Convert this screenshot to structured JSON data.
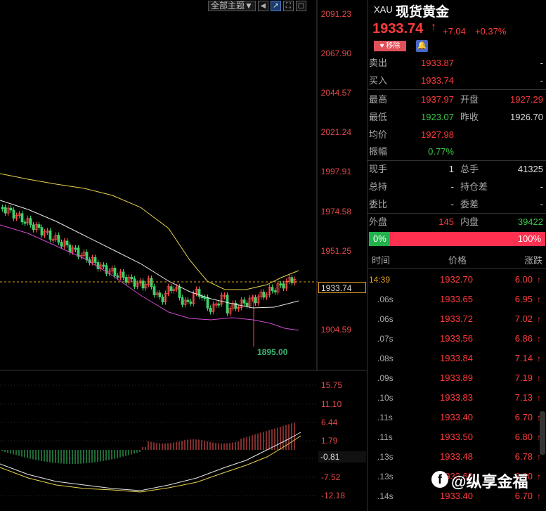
{
  "toolbar": {
    "theme_select": "全部主题▼"
  },
  "price_axis": [
    "2091.23",
    "2067.90",
    "2044.57",
    "2021.24",
    "1997.91",
    "1974.58",
    "1951.25",
    "1904.59"
  ],
  "current_price_tag": "1933.74",
  "low_marker": "1895.00",
  "lower_axis": [
    "15.75",
    "11.10",
    "6.44",
    "1.79",
    "-7.52",
    "-12.18"
  ],
  "lower_current": "-0.81",
  "header": {
    "symbol": "XAU",
    "name": "现货黄金",
    "price": "1933.74",
    "arrow": "↑",
    "change": "+7.04",
    "change_pct": "+0.37%",
    "remove_label": "移除"
  },
  "quote_rows": [
    {
      "l1": "卖出",
      "v1": "1933.87",
      "l2": "",
      "v2": "-"
    },
    {
      "l1": "买入",
      "v1": "1933.74",
      "l2": "",
      "v2": "-"
    },
    {
      "l1": "最高",
      "v1": "1937.97",
      "l2": "开盘",
      "v2": "1927.29"
    },
    {
      "l1": "最低",
      "v1": "1923.07",
      "l2": "昨收",
      "v2": "1926.70"
    },
    {
      "l1": "均价",
      "v1": "1927.98",
      "l2": "",
      "v2": ""
    },
    {
      "l1": "振幅",
      "v1": "0.77%",
      "l2": "",
      "v2": ""
    },
    {
      "l1": "现手",
      "v1": "1",
      "l2": "总手",
      "v2": "41325"
    },
    {
      "l1": "总持",
      "v1": "-",
      "l2": "持仓差",
      "v2": "-"
    },
    {
      "l1": "委比",
      "v1": "-",
      "l2": "委差",
      "v2": "-"
    },
    {
      "l1": "外盘",
      "v1": "145",
      "l2": "内盘",
      "v2": "39422"
    }
  ],
  "ratio": {
    "left": "0%",
    "right": "100%",
    "buy_fraction": 0.12
  },
  "ticks_header": {
    "time": "时间",
    "price": "价格",
    "change": "涨跌"
  },
  "ticks": [
    {
      "time": "14:39",
      "price": "1932.70",
      "change": "6.00"
    },
    {
      "time": ".06s",
      "price": "1933.65",
      "change": "6.95"
    },
    {
      "time": ".06s",
      "price": "1933.72",
      "change": "7.02"
    },
    {
      "time": ".07s",
      "price": "1933.56",
      "change": "6.86"
    },
    {
      "time": ".08s",
      "price": "1933.84",
      "change": "7.14"
    },
    {
      "time": ".09s",
      "price": "1933.89",
      "change": "7.19"
    },
    {
      "time": ".10s",
      "price": "1933.83",
      "change": "7.13"
    },
    {
      "time": ".11s",
      "price": "1933.40",
      "change": "6.70"
    },
    {
      "time": ".11s",
      "price": "1933.50",
      "change": "6.80"
    },
    {
      "time": ".13s",
      "price": "1933.48",
      "change": "6.78"
    },
    {
      "time": ".13s",
      "price": "1933.60",
      "change": "6.90"
    },
    {
      "time": ".14s",
      "price": "1933.40",
      "change": "6.70"
    }
  ],
  "watermark": "@纵享金福",
  "colors": {
    "up": "#ff3b3b",
    "down": "#3cc84a",
    "ma_yellow": "#e8d44a",
    "ma_white": "#e8e8e8",
    "ma_magenta": "#d04ad0"
  },
  "chart_data": {
    "type": "candlestick",
    "price_range": [
      1895.0,
      2091.23
    ],
    "current_price": 1933.74,
    "low": 1895.0,
    "indicator_range": [
      -12.18,
      15.75
    ]
  }
}
